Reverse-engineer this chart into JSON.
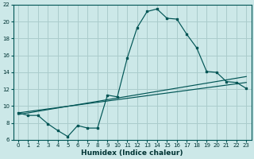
{
  "xlabel": "Humidex (Indice chaleur)",
  "bg_color": "#cce8e8",
  "grid_color": "#aacccc",
  "line_color": "#005555",
  "spine_color": "#005555",
  "xlim": [
    -0.5,
    23.5
  ],
  "ylim": [
    6,
    22
  ],
  "yticks": [
    6,
    8,
    10,
    12,
    14,
    16,
    18,
    20,
    22
  ],
  "xticks": [
    0,
    1,
    2,
    3,
    4,
    5,
    6,
    7,
    8,
    9,
    10,
    11,
    12,
    13,
    14,
    15,
    16,
    17,
    18,
    19,
    20,
    21,
    22,
    23
  ],
  "line1_x": [
    0,
    1,
    2,
    3,
    4,
    5,
    6,
    7,
    8,
    9,
    10,
    11,
    12,
    13,
    14,
    15,
    16,
    17,
    18,
    19,
    20,
    21,
    22,
    23
  ],
  "line1_y": [
    9.2,
    8.9,
    8.9,
    7.9,
    7.1,
    6.4,
    7.7,
    7.4,
    7.4,
    11.3,
    11.1,
    15.7,
    19.3,
    21.2,
    21.5,
    20.4,
    20.3,
    18.5,
    16.9,
    14.1,
    14.0,
    12.9,
    12.8,
    12.1
  ],
  "line2_x": [
    0,
    23
  ],
  "line2_y": [
    9.2,
    12.8
  ],
  "line3_x": [
    0,
    23
  ],
  "line3_y": [
    9.0,
    13.5
  ],
  "xlabel_fontsize": 6.5,
  "tick_fontsize": 5
}
